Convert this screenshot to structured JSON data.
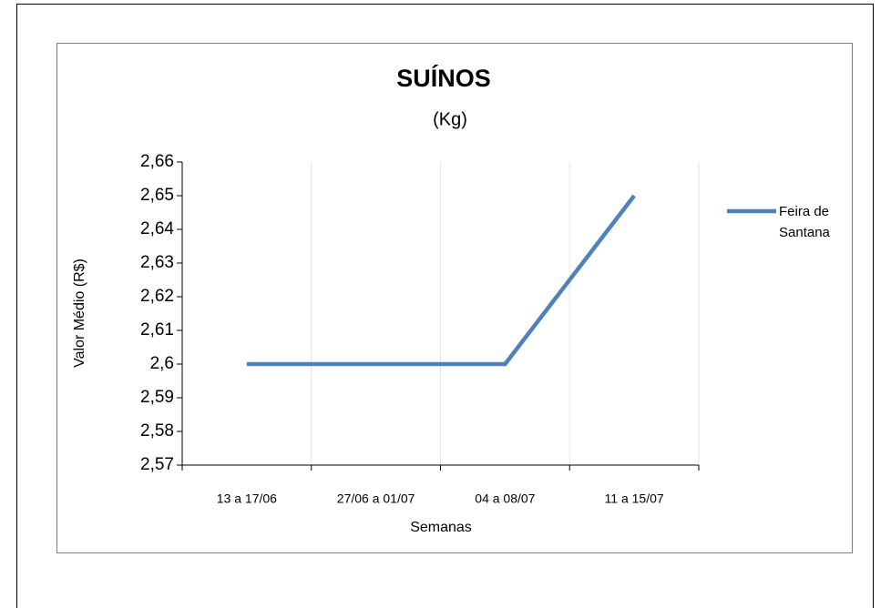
{
  "chart_data": {
    "type": "line",
    "title": "SUÍNOS",
    "subtitle": "(Kg)",
    "x_label": "Semanas",
    "y_label": "Valor Médio (R$)",
    "categories": [
      "13 a 17/06",
      "27/06 a 01/07",
      "04 a 08/07",
      "11 a 15/07"
    ],
    "series": [
      {
        "name": "Feira de Santana",
        "color": "#4f81bd",
        "values": [
          2.6,
          2.6,
          2.6,
          2.65
        ]
      }
    ],
    "ylim": [
      2.57,
      2.66
    ],
    "yticks": [
      {
        "value": 2.57,
        "label": "2,57"
      },
      {
        "value": 2.58,
        "label": "2,58"
      },
      {
        "value": 2.59,
        "label": "2,59"
      },
      {
        "value": 2.6,
        "label": "2,6"
      },
      {
        "value": 2.61,
        "label": "2,61"
      },
      {
        "value": 2.62,
        "label": "2,62"
      },
      {
        "value": 2.63,
        "label": "2,63"
      },
      {
        "value": 2.64,
        "label": "2,64"
      },
      {
        "value": 2.65,
        "label": "2,65"
      },
      {
        "value": 2.66,
        "label": "2,66"
      }
    ],
    "legend": "right",
    "grid": "x"
  }
}
